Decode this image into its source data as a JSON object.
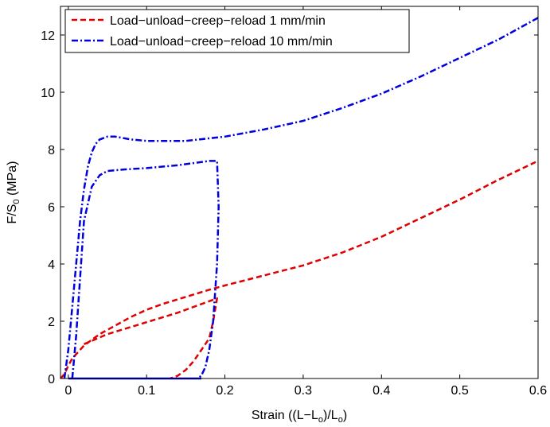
{
  "chart_data": {
    "type": "line",
    "xlabel": "Strain ((L−L",
    "xlabel_sub1": "o",
    "xlabel_mid": ")/L",
    "xlabel_sub2": "o",
    "xlabel_end": ")",
    "ylabel": "F/S",
    "ylabel_sub": "0",
    "ylabel_end": " (MPa)",
    "xlim": [
      -0.01,
      0.6
    ],
    "ylim": [
      0,
      13
    ],
    "xticks": [
      0,
      0.1,
      0.2,
      0.3,
      0.4,
      0.5,
      0.6
    ],
    "xtick_labels": [
      "0",
      "0.1",
      "0.2",
      "0.3",
      "0.4",
      "0.5",
      "0.6"
    ],
    "yticks": [
      0,
      2,
      4,
      6,
      8,
      10,
      12
    ],
    "ytick_labels": [
      "0",
      "2",
      "4",
      "6",
      "8",
      "10",
      "12"
    ],
    "grid": false,
    "legend_position": "top-left",
    "series": [
      {
        "name": "Load−unload−creep−reload 1 mm/min",
        "color": "#e00000",
        "style": "dashed",
        "x": [
          -0.01,
          -0.005,
          0.0,
          0.005,
          0.01,
          0.015,
          0.02,
          0.03,
          0.04,
          0.06,
          0.08,
          0.1,
          0.12,
          0.15,
          0.18,
          0.2,
          0.25,
          0.3,
          0.35,
          0.4,
          0.45,
          0.5,
          0.55,
          0.6
        ],
        "y": [
          0.0,
          0.15,
          0.45,
          0.7,
          0.85,
          1.0,
          1.15,
          1.35,
          1.55,
          1.85,
          2.15,
          2.4,
          2.6,
          2.85,
          3.1,
          3.25,
          3.6,
          3.95,
          4.4,
          4.95,
          5.6,
          6.25,
          6.95,
          7.6
        ]
      },
      {
        "name": "",
        "color": "#e00000",
        "style": "dashed",
        "x": [
          0.02,
          0.05,
          0.08,
          0.11,
          0.14,
          0.17,
          0.19,
          0.185,
          0.18,
          0.17,
          0.16,
          0.15,
          0.14,
          0.13
        ],
        "y": [
          1.2,
          1.55,
          1.8,
          2.05,
          2.3,
          2.6,
          2.8,
          2.0,
          1.4,
          1.0,
          0.6,
          0.3,
          0.1,
          0.0
        ]
      },
      {
        "name": "Load−unload−creep−reload 10 mm/min",
        "color": "#0000dd",
        "style": "dashdot",
        "x": [
          -0.005,
          0.0,
          0.005,
          0.01,
          0.015,
          0.02,
          0.025,
          0.03,
          0.035,
          0.04,
          0.05,
          0.06,
          0.08,
          0.1,
          0.15,
          0.2,
          0.25,
          0.3,
          0.35,
          0.4,
          0.45,
          0.5,
          0.55,
          0.6
        ],
        "y": [
          0.0,
          1.0,
          2.5,
          4.0,
          5.5,
          6.6,
          7.4,
          7.9,
          8.2,
          8.35,
          8.45,
          8.45,
          8.35,
          8.3,
          8.3,
          8.45,
          8.7,
          9.0,
          9.45,
          9.95,
          10.55,
          11.2,
          11.85,
          12.6
        ]
      },
      {
        "name": "",
        "color": "#0000dd",
        "style": "dashdot",
        "x": [
          0.005,
          0.01,
          0.015,
          0.02,
          0.03,
          0.04,
          0.05,
          0.07,
          0.1,
          0.14,
          0.18,
          0.19,
          0.192,
          0.19,
          0.185,
          0.18,
          0.175,
          0.17,
          0.165
        ],
        "y": [
          0.0,
          1.5,
          3.5,
          5.5,
          6.7,
          7.1,
          7.25,
          7.3,
          7.35,
          7.45,
          7.6,
          7.6,
          6.0,
          4.0,
          2.0,
          1.0,
          0.4,
          0.1,
          0.0
        ]
      },
      {
        "name": "",
        "color": "#0000dd",
        "style": "solid",
        "x": [
          0.0,
          0.06,
          0.12,
          0.17
        ],
        "y": [
          0.0,
          0.0,
          0.0,
          0.0
        ]
      }
    ]
  }
}
